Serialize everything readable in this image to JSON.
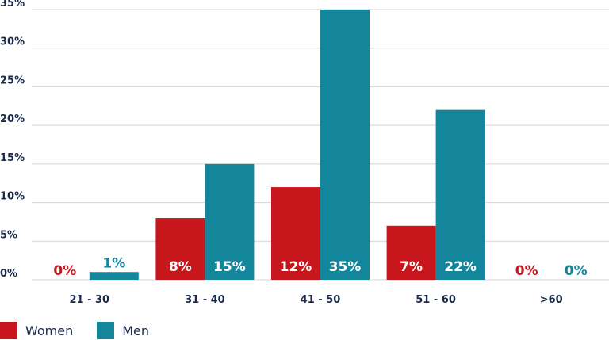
{
  "chart_data": {
    "type": "bar",
    "categories": [
      "21 - 30",
      "31 - 40",
      "41 - 50",
      "51 - 60",
      ">60"
    ],
    "series": [
      {
        "name": "Women",
        "color": "#c8171c",
        "values": [
          0,
          8,
          12,
          7,
          0
        ],
        "labels": [
          "0%",
          "8%",
          "12%",
          "7%",
          "0%"
        ]
      },
      {
        "name": "Men",
        "color": "#13869b",
        "values": [
          1,
          15,
          35,
          22,
          0
        ],
        "labels": [
          "1%",
          "15%",
          "35%",
          "22%",
          "0%"
        ]
      }
    ],
    "ylim": [
      0,
      35
    ],
    "yticks": [
      0,
      5,
      10,
      15,
      20,
      25,
      30,
      35
    ],
    "ytick_labels": [
      "0%",
      "5%",
      "10%",
      "15%",
      "20%",
      "25%",
      "30%",
      "35%"
    ],
    "grid": true,
    "legend_position": "bottom-left",
    "title": "",
    "xlabel": "",
    "ylabel": ""
  }
}
